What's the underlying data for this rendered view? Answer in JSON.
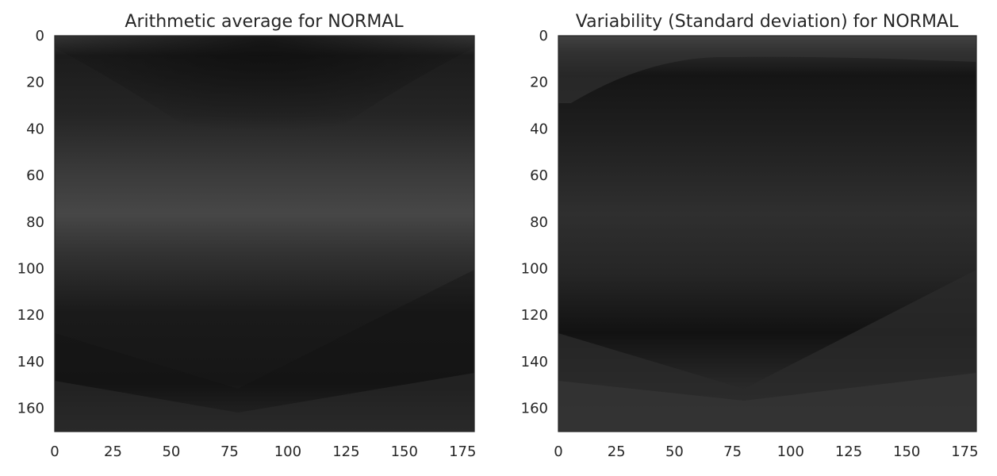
{
  "chart_data": [
    {
      "type": "heatmap",
      "title": "Arithmetic average for NORMAL",
      "xlim": [
        0,
        180
      ],
      "ylim": [
        170,
        0
      ],
      "xticks": [
        "0",
        "25",
        "50",
        "75",
        "100",
        "125",
        "150",
        "175"
      ],
      "yticks": [
        "0",
        "20",
        "40",
        "60",
        "80",
        "100",
        "120",
        "140",
        "160"
      ],
      "colormap": "gray",
      "grid": false,
      "colors": {
        "frame": "#262626",
        "dark": "#141414",
        "mid": "#3a3a3a",
        "light": "#4e4e4e"
      }
    },
    {
      "type": "heatmap",
      "title": "Variability (Standard deviation) for NORMAL",
      "xlim": [
        0,
        180
      ],
      "ylim": [
        170,
        0
      ],
      "xticks": [
        "0",
        "25",
        "50",
        "75",
        "100",
        "125",
        "150",
        "175"
      ],
      "yticks": [
        "0",
        "20",
        "40",
        "60",
        "80",
        "100",
        "120",
        "140",
        "160"
      ],
      "colormap": "gray",
      "grid": false,
      "colors": {
        "frame": "#262626",
        "dark": "#0f0f0f",
        "mid": "#2e2e2e",
        "light": "#454545"
      }
    }
  ]
}
